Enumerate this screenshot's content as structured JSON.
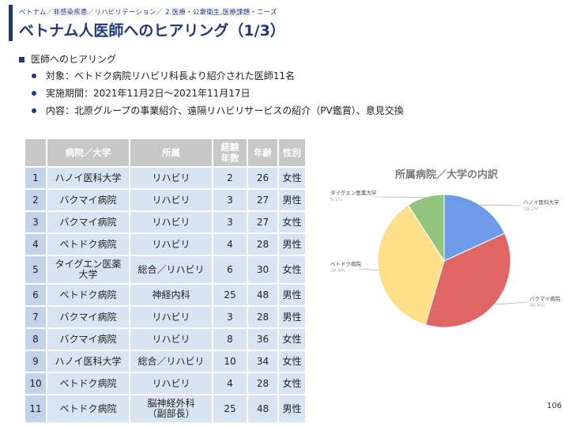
{
  "header": {
    "breadcrumb": "ベトナム／非感染疾患／リハビリテーション／ 2.医療・公衆衛生,医療課題・ニーズ",
    "title": "ベトナム人医師へのヒアリング（1/3）"
  },
  "section": {
    "heading": "医師へのヒアリング",
    "bullets": [
      "対象：ベトドク病院リハビリ科長より紹介された医師11名",
      "実施期間：2021年11月2日〜2021年11月17日",
      "内容：北原グループの事業紹介、遠隔リハビリサービスの紹介（PV鑑賞）、意見交換"
    ]
  },
  "table": {
    "headers": [
      "",
      "病院／大学",
      "所属",
      "経験\n年数",
      "年齢",
      "性別"
    ],
    "rows": [
      [
        "1",
        "ハノイ医科大学",
        "リハビリ",
        "2",
        "26",
        "女性"
      ],
      [
        "2",
        "バクマイ病院",
        "リハビリ",
        "3",
        "27",
        "男性"
      ],
      [
        "3",
        "バクマイ病院",
        "リハビリ",
        "3",
        "27",
        "女性"
      ],
      [
        "4",
        "ベトドク病院",
        "リハビリ",
        "4",
        "28",
        "男性"
      ],
      [
        "5",
        "タイグエン医薬\n大学",
        "総合／リハビリ",
        "6",
        "30",
        "女性"
      ],
      [
        "6",
        "ベトドク病院",
        "神経内科",
        "25",
        "48",
        "男性"
      ],
      [
        "7",
        "バクマイ病院",
        "リハビリ",
        "3",
        "28",
        "男性"
      ],
      [
        "8",
        "バクマイ病院",
        "リハビリ",
        "8",
        "36",
        "女性"
      ],
      [
        "9",
        "ハノイ医科大学",
        "総合／リハビリ",
        "10",
        "34",
        "女性"
      ],
      [
        "10",
        "ベトドク病院",
        "リハビリ",
        "4",
        "28",
        "女性"
      ],
      [
        "11",
        "ベトドク病院",
        "脳神経外科\n（副部長）",
        "25",
        "48",
        "男性"
      ]
    ]
  },
  "chart_data": {
    "type": "pie",
    "title": "所属病院／大学の内訳",
    "slices": [
      {
        "label": "ハノイ医科大学",
        "value": 18.2,
        "display": "18.2%",
        "color": "#6e9be8"
      },
      {
        "label": "バクマイ病院",
        "value": 36.4,
        "display": "36.4%",
        "color": "#e06666"
      },
      {
        "label": "ベトドク病院",
        "value": 36.4,
        "display": "36.4%",
        "color": "#ffe08a"
      },
      {
        "label": "タイグエン医薬大学",
        "value": 9.1,
        "display": "9.1%",
        "color": "#93c47d"
      }
    ]
  },
  "footer": {
    "page_number": "106"
  }
}
